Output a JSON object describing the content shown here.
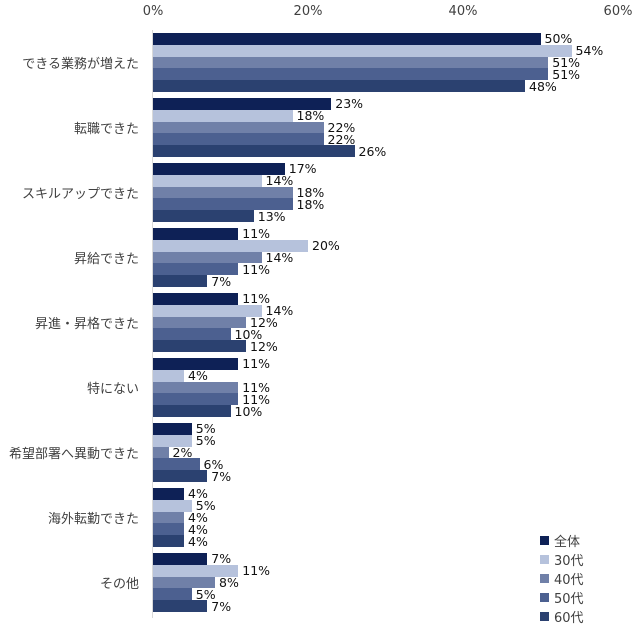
{
  "chart_data": {
    "type": "bar",
    "orientation": "horizontal",
    "title": "",
    "categories": [
      "できる業務が増えた",
      "転職できた",
      "スキルアップできた",
      "昇給できた",
      "昇進・昇格できた",
      "特にない",
      "希望部署へ異動できた",
      "海外転勤できた",
      "その他"
    ],
    "series": [
      {
        "name": "全体",
        "color": "#0E2156",
        "values": [
          50,
          23,
          17,
          11,
          11,
          11,
          5,
          4,
          7
        ]
      },
      {
        "name": "30代",
        "color": "#B6C2DC",
        "values": [
          54,
          18,
          14,
          20,
          14,
          4,
          5,
          5,
          11
        ]
      },
      {
        "name": "40代",
        "color": "#7080A8",
        "values": [
          51,
          22,
          18,
          14,
          12,
          11,
          2,
          4,
          8
        ]
      },
      {
        "name": "50代",
        "color": "#4C6090",
        "values": [
          51,
          22,
          18,
          11,
          10,
          11,
          6,
          4,
          5
        ]
      },
      {
        "name": "60代",
        "color": "#2B4170",
        "values": [
          48,
          26,
          13,
          7,
          12,
          10,
          7,
          4,
          7
        ]
      }
    ],
    "value_label_format": "{v}%",
    "x_axis": {
      "position": "top",
      "min": 0,
      "max": 60,
      "ticks": [
        {
          "label": "0%",
          "value": 0
        },
        {
          "label": "20%",
          "value": 20
        },
        {
          "label": "40%",
          "value": 40
        },
        {
          "label": "60%",
          "value": 60
        }
      ]
    },
    "legend": {
      "position": "bottom-right",
      "entries": [
        "全体",
        "30代",
        "40代",
        "50代",
        "60代"
      ]
    },
    "grid": false,
    "colors": {
      "axis_line": "#D9D9D9",
      "axis_text": "#404040",
      "value_text": "#111111"
    }
  }
}
